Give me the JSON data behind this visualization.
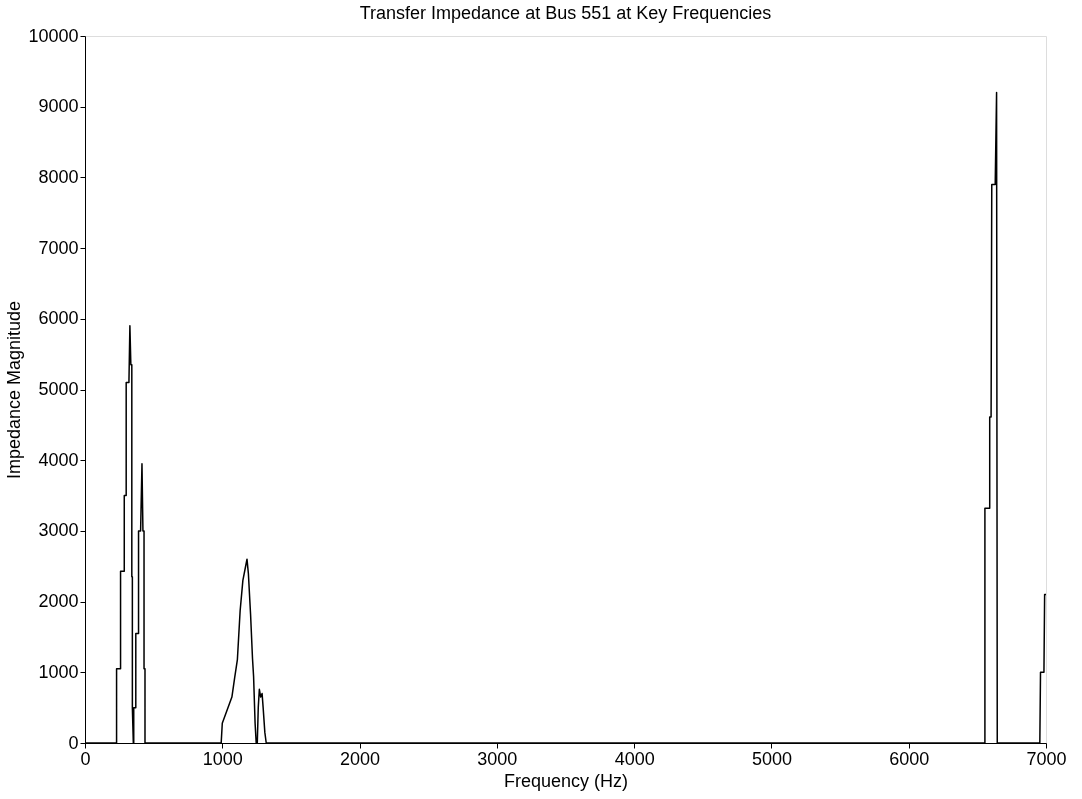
{
  "chart_data": {
    "type": "line",
    "title": "Transfer Impedance at Bus 551 at Key Frequencies",
    "xlabel": "Frequency (Hz)",
    "ylabel": "Impedance Magnitude",
    "x": [
      0,
      230,
      230,
      259,
      259,
      286,
      286,
      300,
      300,
      320,
      327,
      334,
      341,
      341,
      345,
      345,
      352,
      355,
      355,
      370,
      370,
      390,
      390,
      405,
      415,
      422,
      430,
      430,
      437,
      437,
      992,
      1000,
      1040,
      1070,
      1090,
      1110,
      1130,
      1150,
      1170,
      1180,
      1190,
      1206,
      1220,
      1228,
      1239,
      1247,
      1255,
      1262,
      1270,
      1280,
      1290,
      1298,
      1310,
      1320,
      6550,
      6555,
      6555,
      6590,
      6590,
      6600,
      6605,
      6630,
      6640,
      6645,
      6955,
      6960,
      6985,
      6990,
      7000
    ],
    "series": [
      {
        "color": "#000000",
        "values": [
          0,
          0,
          1050,
          1050,
          2430,
          2430,
          3500,
          3500,
          5100,
          5100,
          5900,
          5350,
          5350,
          2350,
          2350,
          500,
          0,
          0,
          500,
          500,
          1550,
          1550,
          3000,
          3000,
          3950,
          3000,
          3000,
          1050,
          1050,
          0,
          0,
          280,
          490,
          650,
          920,
          1180,
          1870,
          2300,
          2500,
          2600,
          2400,
          1820,
          1200,
          940,
          280,
          0,
          0,
          500,
          760,
          650,
          700,
          490,
          150,
          0,
          0,
          0,
          3320,
          3320,
          4610,
          4610,
          7900,
          7900,
          9200,
          0,
          0,
          1000,
          1000,
          2100,
          2100
        ]
      }
    ],
    "xlim": [
      0,
      7000
    ],
    "ylim": [
      0,
      10000
    ],
    "xticks": [
      0,
      1000,
      2000,
      3000,
      4000,
      5000,
      6000,
      7000
    ],
    "yticks": [
      0,
      1000,
      2000,
      3000,
      4000,
      5000,
      6000,
      7000,
      8000,
      9000,
      10000
    ],
    "grid": false,
    "marker": "none",
    "line_style": "solid"
  }
}
